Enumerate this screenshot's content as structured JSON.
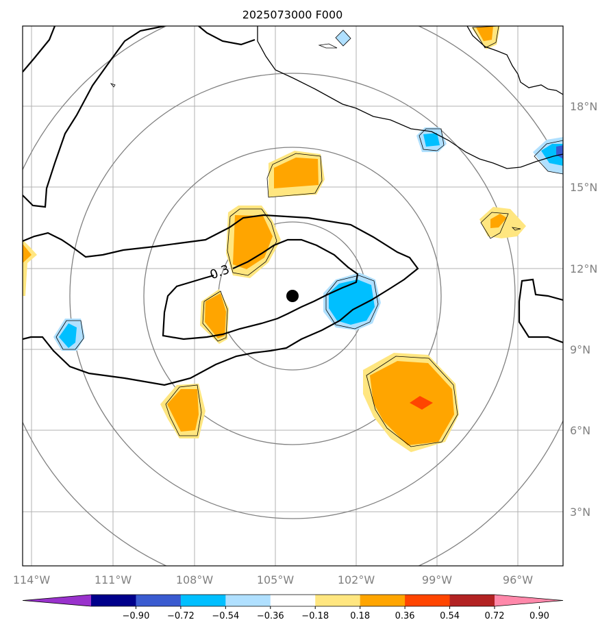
{
  "title": "2025073000 F000",
  "map": {
    "lon_labels": [
      "114°W",
      "111°W",
      "108°W",
      "105°W",
      "102°W",
      "99°W",
      "96°W"
    ],
    "lat_labels": [
      "18°N",
      "15°N",
      "12°N",
      "9°N",
      "6°N",
      "3°N"
    ],
    "lon_values": [
      -114,
      -111,
      -108,
      -105,
      -102,
      -99,
      -96
    ],
    "lat_values": [
      18,
      15,
      12,
      9,
      6,
      3
    ],
    "contour_label": "0.3",
    "center": {
      "lon": -104.3,
      "lat": 11.0
    }
  },
  "colorbar": {
    "colors": [
      "#9932cc",
      "#00008b",
      "#3a5bd0",
      "#00bfff",
      "#b0e0ff",
      "#ffffff",
      "#ffe680",
      "#ffa500",
      "#ff4500",
      "#b22222",
      "#ff88aa"
    ],
    "tick_labels": [
      "−0.90",
      "−0.72",
      "−0.54",
      "−0.36",
      "−0.18",
      "0.18",
      "0.36",
      "0.54",
      "0.72",
      "0.90"
    ]
  }
}
